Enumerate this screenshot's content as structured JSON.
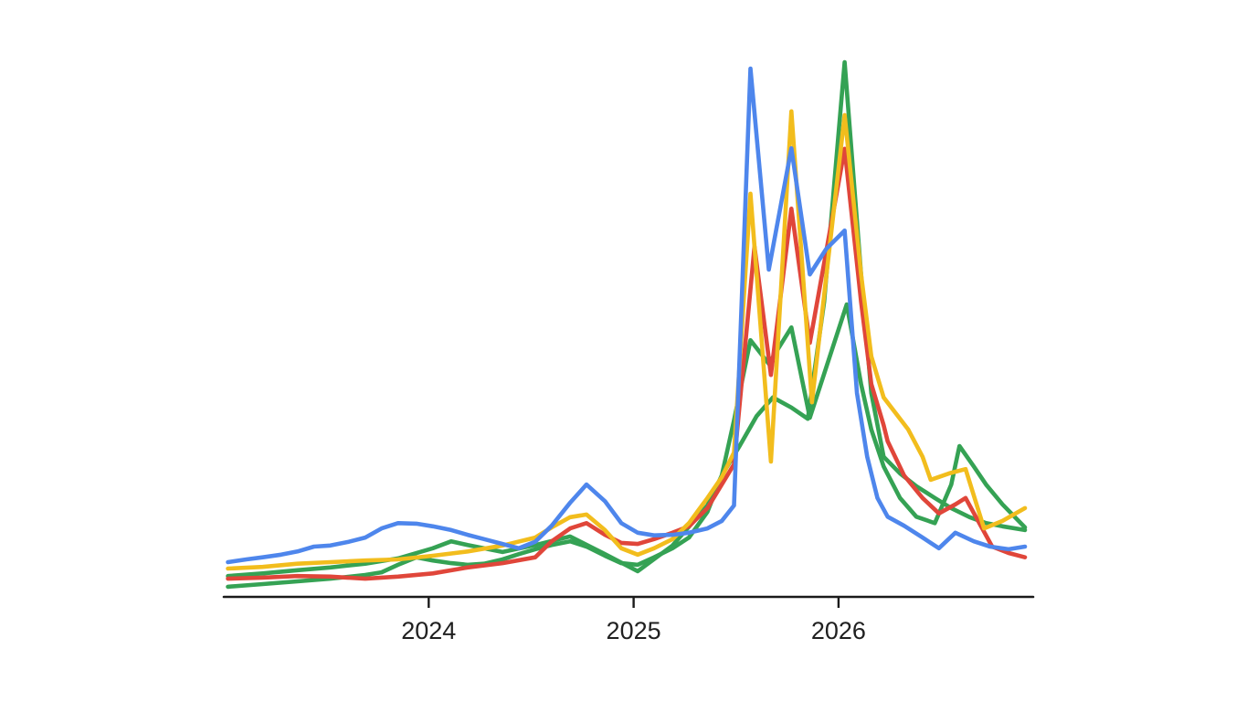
{
  "page": {
    "background_color": "#ffffff"
  },
  "chart_data": {
    "type": "line",
    "title": "",
    "grid": false,
    "legend": false,
    "axis_color": "#1a1a1a",
    "tick_label_color": "#202020",
    "x_axis": {
      "range": [
        2023.0,
        2026.95
      ],
      "ticks": [
        {
          "t": 2024,
          "label": "2024"
        },
        {
          "t": 2025,
          "label": "2025"
        },
        {
          "t": 2026,
          "label": "2026"
        }
      ]
    },
    "y_axis": {
      "range": [
        0,
        100
      ],
      "visible": false
    },
    "series": [
      {
        "name": "green-2",
        "color": "#35a254",
        "points": [
          [
            2023.02,
            1.9
          ],
          [
            2023.19,
            2.4
          ],
          [
            2023.36,
            2.9
          ],
          [
            2023.52,
            3.4
          ],
          [
            2023.69,
            4.1
          ],
          [
            2023.77,
            4.6
          ],
          [
            2023.85,
            6.0
          ],
          [
            2023.94,
            7.4
          ],
          [
            2024.02,
            6.8
          ],
          [
            2024.11,
            6.3
          ],
          [
            2024.19,
            6.0
          ],
          [
            2024.27,
            6.2
          ],
          [
            2024.36,
            7.0
          ],
          [
            2024.44,
            8.0
          ],
          [
            2024.52,
            8.9
          ],
          [
            2024.6,
            9.7
          ],
          [
            2024.69,
            10.4
          ],
          [
            2024.77,
            9.4
          ],
          [
            2024.86,
            7.7
          ],
          [
            2024.94,
            6.3
          ],
          [
            2025.02,
            6.0
          ],
          [
            2025.1,
            7.4
          ],
          [
            2025.19,
            9.1
          ],
          [
            2025.27,
            11.1
          ],
          [
            2025.36,
            15.9
          ],
          [
            2025.43,
            22.7
          ],
          [
            2025.49,
            33.0
          ],
          [
            2025.57,
            48.0
          ],
          [
            2025.66,
            43.6
          ],
          [
            2025.77,
            50.4
          ],
          [
            2025.86,
            33.5
          ],
          [
            2026.04,
            54.7
          ],
          [
            2026.11,
            39.8
          ],
          [
            2026.16,
            31.3
          ],
          [
            2026.22,
            24.4
          ],
          [
            2026.3,
            18.5
          ],
          [
            2026.38,
            15.0
          ],
          [
            2026.47,
            13.8
          ],
          [
            2026.55,
            21.0
          ],
          [
            2026.59,
            28.2
          ],
          [
            2026.66,
            24.4
          ],
          [
            2026.72,
            21.0
          ],
          [
            2026.8,
            17.3
          ],
          [
            2026.91,
            13.0
          ]
        ]
      },
      {
        "name": "green",
        "color": "#35a254",
        "points": [
          [
            2023.02,
            3.9
          ],
          [
            2023.19,
            4.4
          ],
          [
            2023.36,
            5.0
          ],
          [
            2023.52,
            5.5
          ],
          [
            2023.69,
            6.2
          ],
          [
            2023.85,
            7.2
          ],
          [
            2024.02,
            9.1
          ],
          [
            2024.11,
            10.4
          ],
          [
            2024.19,
            9.7
          ],
          [
            2024.36,
            8.4
          ],
          [
            2024.52,
            9.7
          ],
          [
            2024.69,
            11.3
          ],
          [
            2024.86,
            8.0
          ],
          [
            2025.02,
            4.8
          ],
          [
            2025.19,
            9.6
          ],
          [
            2025.36,
            17.1
          ],
          [
            2025.43,
            22.7
          ],
          [
            2025.52,
            28.4
          ],
          [
            2025.6,
            33.8
          ],
          [
            2025.68,
            37.3
          ],
          [
            2025.77,
            35.4
          ],
          [
            2025.85,
            33.3
          ],
          [
            2025.93,
            55.2
          ],
          [
            2026.03,
            100.0
          ],
          [
            2026.11,
            60.3
          ],
          [
            2026.16,
            38.1
          ],
          [
            2026.22,
            26.2
          ],
          [
            2026.3,
            23.1
          ],
          [
            2026.38,
            20.7
          ],
          [
            2026.47,
            18.5
          ],
          [
            2026.55,
            16.6
          ],
          [
            2026.64,
            14.9
          ],
          [
            2026.72,
            13.8
          ],
          [
            2026.8,
            13.2
          ],
          [
            2026.91,
            12.5
          ]
        ]
      },
      {
        "name": "red",
        "color": "#e0463a",
        "points": [
          [
            2023.02,
            3.4
          ],
          [
            2023.19,
            3.6
          ],
          [
            2023.36,
            3.9
          ],
          [
            2023.52,
            3.8
          ],
          [
            2023.69,
            3.4
          ],
          [
            2023.85,
            3.8
          ],
          [
            2024.02,
            4.4
          ],
          [
            2024.19,
            5.5
          ],
          [
            2024.36,
            6.3
          ],
          [
            2024.52,
            7.4
          ],
          [
            2024.6,
            10.4
          ],
          [
            2024.69,
            12.8
          ],
          [
            2024.77,
            13.8
          ],
          [
            2024.86,
            11.6
          ],
          [
            2024.94,
            10.1
          ],
          [
            2025.02,
            9.9
          ],
          [
            2025.1,
            10.8
          ],
          [
            2025.19,
            12.0
          ],
          [
            2025.27,
            13.2
          ],
          [
            2025.36,
            16.6
          ],
          [
            2025.43,
            21.0
          ],
          [
            2025.49,
            24.8
          ],
          [
            2025.59,
            65.5
          ],
          [
            2025.67,
            41.5
          ],
          [
            2025.77,
            72.6
          ],
          [
            2025.86,
            47.5
          ],
          [
            2026.03,
            83.8
          ],
          [
            2026.11,
            55.2
          ],
          [
            2026.16,
            39.8
          ],
          [
            2026.22,
            32.1
          ],
          [
            2026.24,
            29.1
          ],
          [
            2026.32,
            22.7
          ],
          [
            2026.41,
            18.5
          ],
          [
            2026.49,
            15.6
          ],
          [
            2026.57,
            17.3
          ],
          [
            2026.62,
            18.5
          ],
          [
            2026.75,
            9.4
          ],
          [
            2026.83,
            8.2
          ],
          [
            2026.91,
            7.4
          ]
        ]
      },
      {
        "name": "yellow",
        "color": "#f2bd1d",
        "points": [
          [
            2023.02,
            5.3
          ],
          [
            2023.19,
            5.6
          ],
          [
            2023.36,
            6.2
          ],
          [
            2023.52,
            6.5
          ],
          [
            2023.69,
            6.8
          ],
          [
            2023.85,
            7.0
          ],
          [
            2024.02,
            7.7
          ],
          [
            2024.19,
            8.5
          ],
          [
            2024.36,
            9.6
          ],
          [
            2024.52,
            11.1
          ],
          [
            2024.6,
            13.0
          ],
          [
            2024.69,
            14.9
          ],
          [
            2024.77,
            15.4
          ],
          [
            2024.86,
            12.5
          ],
          [
            2024.94,
            9.1
          ],
          [
            2025.02,
            7.9
          ],
          [
            2025.1,
            9.1
          ],
          [
            2025.19,
            10.8
          ],
          [
            2025.27,
            13.8
          ],
          [
            2025.36,
            18.5
          ],
          [
            2025.43,
            22.4
          ],
          [
            2025.49,
            27.0
          ],
          [
            2025.57,
            75.4
          ],
          [
            2025.67,
            25.3
          ],
          [
            2025.77,
            90.8
          ],
          [
            2025.87,
            36.4
          ],
          [
            2026.03,
            90.1
          ],
          [
            2026.11,
            60.3
          ],
          [
            2026.16,
            45.0
          ],
          [
            2026.22,
            37.3
          ],
          [
            2026.34,
            31.3
          ],
          [
            2026.41,
            26.2
          ],
          [
            2026.45,
            21.9
          ],
          [
            2026.54,
            23.1
          ],
          [
            2026.62,
            23.9
          ],
          [
            2026.71,
            12.8
          ],
          [
            2026.8,
            14.2
          ],
          [
            2026.91,
            16.6
          ]
        ]
      },
      {
        "name": "blue",
        "color": "#4e86ec",
        "points": [
          [
            2023.02,
            6.5
          ],
          [
            2023.11,
            7.0
          ],
          [
            2023.19,
            7.4
          ],
          [
            2023.28,
            7.9
          ],
          [
            2023.36,
            8.5
          ],
          [
            2023.44,
            9.4
          ],
          [
            2023.52,
            9.6
          ],
          [
            2023.61,
            10.3
          ],
          [
            2023.69,
            11.1
          ],
          [
            2023.77,
            12.8
          ],
          [
            2023.85,
            13.8
          ],
          [
            2023.94,
            13.7
          ],
          [
            2024.02,
            13.2
          ],
          [
            2024.11,
            12.5
          ],
          [
            2024.19,
            11.6
          ],
          [
            2024.27,
            10.8
          ],
          [
            2024.36,
            9.9
          ],
          [
            2024.44,
            9.1
          ],
          [
            2024.52,
            10.3
          ],
          [
            2024.6,
            13.3
          ],
          [
            2024.69,
            17.6
          ],
          [
            2024.77,
            21.0
          ],
          [
            2024.86,
            17.9
          ],
          [
            2024.94,
            13.8
          ],
          [
            2025.02,
            12.0
          ],
          [
            2025.1,
            11.5
          ],
          [
            2025.19,
            11.6
          ],
          [
            2025.27,
            12.0
          ],
          [
            2025.36,
            12.8
          ],
          [
            2025.43,
            14.2
          ],
          [
            2025.49,
            17.1
          ],
          [
            2025.57,
            98.8
          ],
          [
            2025.66,
            61.2
          ],
          [
            2025.77,
            83.9
          ],
          [
            2025.86,
            60.3
          ],
          [
            2025.94,
            65.1
          ],
          [
            2026.03,
            68.5
          ],
          [
            2026.09,
            38.1
          ],
          [
            2026.14,
            26.2
          ],
          [
            2026.19,
            18.5
          ],
          [
            2026.24,
            15.0
          ],
          [
            2026.32,
            13.3
          ],
          [
            2026.41,
            11.1
          ],
          [
            2026.49,
            9.1
          ],
          [
            2026.57,
            12.0
          ],
          [
            2026.66,
            10.4
          ],
          [
            2026.74,
            9.4
          ],
          [
            2026.83,
            8.9
          ],
          [
            2026.91,
            9.4
          ]
        ]
      }
    ]
  }
}
